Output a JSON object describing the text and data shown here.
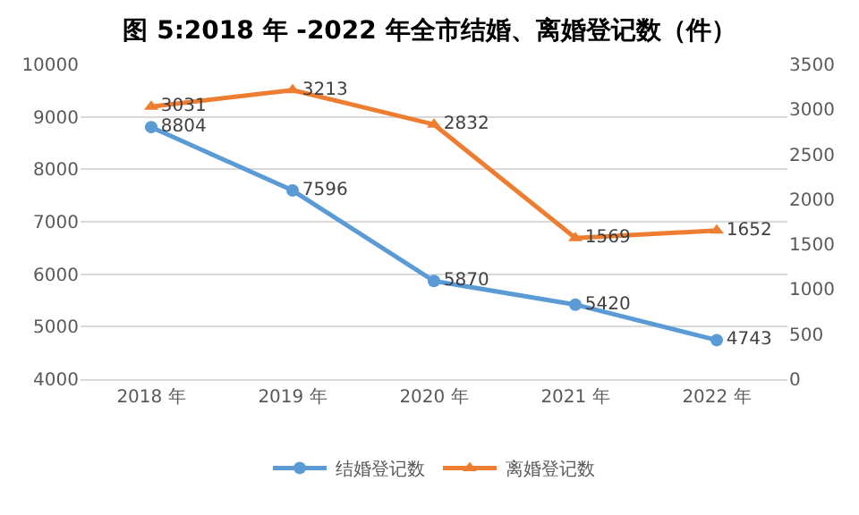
{
  "chart_data": {
    "type": "line",
    "title": "图 5:2018 年 -2022 年全市结婚、离婚登记数（件）",
    "categories": [
      "2018 年",
      "2019 年",
      "2020 年",
      "2021 年",
      "2022 年"
    ],
    "series": [
      {
        "name": "结婚登记数",
        "color": "#5b9bd5",
        "marker": "circle",
        "values": [
          8804,
          7596,
          5870,
          5420,
          4743
        ]
      },
      {
        "name": "离婚登记数",
        "color": "#ed7d31",
        "marker": "triangle",
        "axis": "y2",
        "values": [
          3031,
          3213,
          2832,
          1569,
          1652
        ]
      }
    ],
    "ylim": [
      4000,
      10000
    ],
    "yticks": [
      4000,
      5000,
      6000,
      7000,
      8000,
      9000,
      10000
    ],
    "y2lim": [
      0,
      3500
    ],
    "y2ticks": [
      0,
      500,
      1000,
      1500,
      2000,
      2500,
      3000,
      3500
    ],
    "data_labels": true,
    "grid": "y",
    "legend": "bottom",
    "line_style": "solid"
  }
}
